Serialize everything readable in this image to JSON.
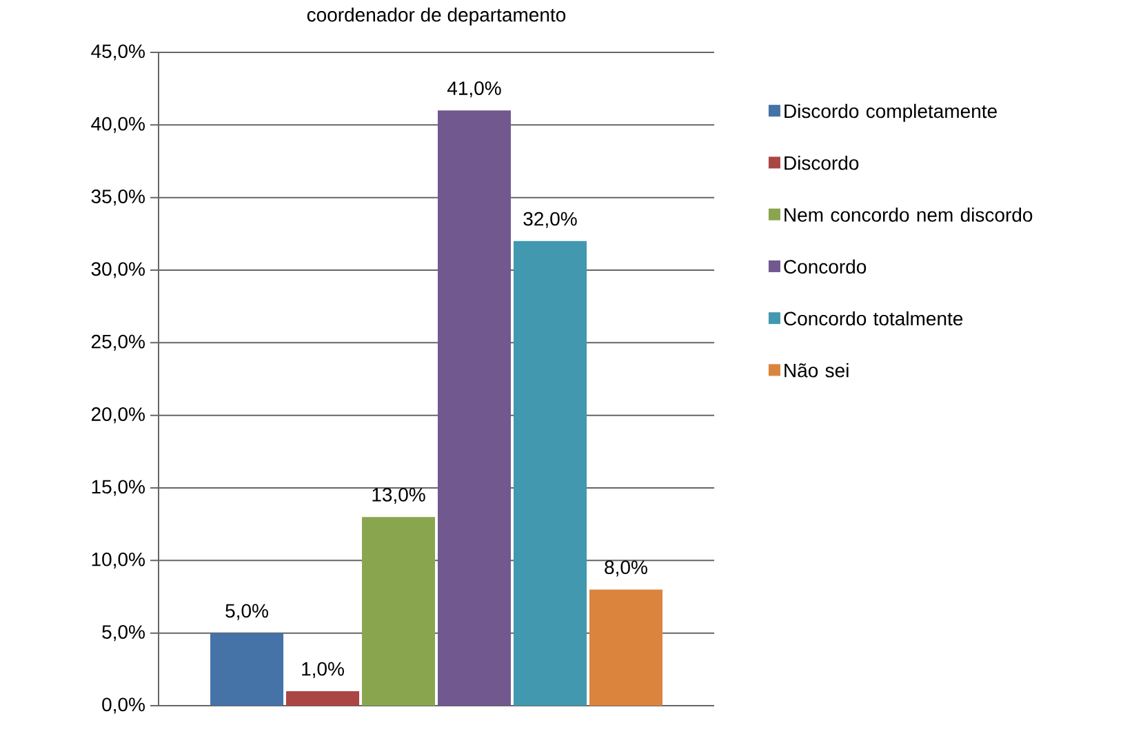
{
  "chart_data": {
    "type": "bar",
    "title": "coordenador de departamento",
    "categories": [
      null
    ],
    "series": [
      {
        "name": "Discordo completamente",
        "color": "#4572a7",
        "values": [
          5
        ],
        "value_labels": [
          "5,0%"
        ]
      },
      {
        "name": "Discordo",
        "color": "#aa4643",
        "values": [
          1
        ],
        "value_labels": [
          "1,0%"
        ]
      },
      {
        "name": "Nem concordo nem discordo",
        "color": "#89a54e",
        "values": [
          13
        ],
        "value_labels": [
          "13,0%"
        ]
      },
      {
        "name": "Concordo",
        "color": "#71588f",
        "values": [
          41
        ],
        "value_labels": [
          "41,0%"
        ]
      },
      {
        "name": "Concordo totalmente",
        "color": "#4198af",
        "values": [
          32
        ],
        "value_labels": [
          "32,0%"
        ]
      },
      {
        "name": "Não sei",
        "color": "#db843d",
        "values": [
          8
        ],
        "value_labels": [
          "8,0%"
        ]
      }
    ],
    "ylim": [
      0,
      45
    ],
    "yticks": [
      {
        "value": 0,
        "label": "0,0%"
      },
      {
        "value": 5,
        "label": "5,0%"
      },
      {
        "value": 10,
        "label": "10,0%"
      },
      {
        "value": 15,
        "label": "15,0%"
      },
      {
        "value": 20,
        "label": "20,0%"
      },
      {
        "value": 25,
        "label": "25,0%"
      },
      {
        "value": 30,
        "label": "30,0%"
      },
      {
        "value": 35,
        "label": "35,0%"
      },
      {
        "value": 40,
        "label": "40,0%"
      },
      {
        "value": 45,
        "label": "45,0%"
      }
    ],
    "grid": "y",
    "legend": "right"
  }
}
